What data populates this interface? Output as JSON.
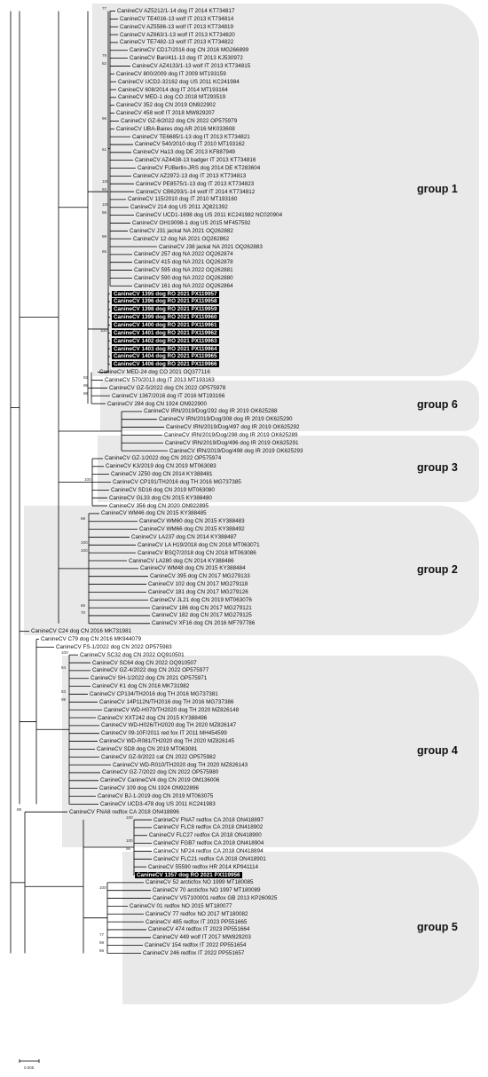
{
  "groups": [
    {
      "label": "group 1",
      "from": 0,
      "to": 46
    },
    {
      "label": "group 6",
      "from": 48,
      "to": 53
    },
    {
      "label": "group 3",
      "from": 55,
      "to": 62
    },
    {
      "label": "group 2",
      "from": 64,
      "to": 79
    },
    {
      "label": "group 4",
      "from": 83,
      "to": 106
    },
    {
      "label": "group 5",
      "from": 108,
      "to": 126
    }
  ],
  "scale": {
    "label": "0.005"
  },
  "leaves": [
    {
      "label": "CanineCV AZ5212/1-14 dog IT 2014 KT734817",
      "bs": "77"
    },
    {
      "label": "CanineCV TE4016-13 wolf IT 2013 KT734814",
      "bs": ""
    },
    {
      "label": "CanineCV AZ5586-13 wolf IT 2013 KT734819",
      "bs": ""
    },
    {
      "label": "CanineCV AZ663/1-13 wolf IT 2013 KT734820",
      "bs": ""
    },
    {
      "label": "CanineCV TE7482-13 wolf IT 2013 KT734822",
      "bs": ""
    },
    {
      "label": "CanineCV CD17/2016 dog CN 2016 MG266899",
      "bs": ""
    },
    {
      "label": "CanineCV Bari/411-13 dog IT 2013 KJ530972",
      "bs": "79"
    },
    {
      "label": "CanineCV AZ4133/1-13 wolf IT 2013 KT734815",
      "bs": "82"
    },
    {
      "label": "CanineCV 800/2009 dog IT 2009 MT193159",
      "bs": ""
    },
    {
      "label": "CanineCV UCD2-32162 dog US 2011 KC241984",
      "bs": ""
    },
    {
      "label": "CanineCV 608/2014 dog IT 2014 MT193164",
      "bs": ""
    },
    {
      "label": "CanineCV MED-1 dog CO 2018 MT293519",
      "bs": ""
    },
    {
      "label": "CanineCV 352 dog CN 2019 ON922902",
      "bs": ""
    },
    {
      "label": "CanineCV 458 wolf IT 2018 MW829207",
      "bs": ""
    },
    {
      "label": "CanineCV GZ-6/2022 dog CN 2022 OP575979",
      "bs": "96"
    },
    {
      "label": "CanineCV UBA-Baires dog AR 2016 MK033608",
      "bs": ""
    },
    {
      "label": "CanineCV TE6685/1-13 dog IT 2013 KT734821",
      "bs": ""
    },
    {
      "label": "CanineCV 540/2010 dog IT 2010 MT193162",
      "bs": ""
    },
    {
      "label": "CanineCV Ha13 dog DE 2013 KF887949",
      "bs": "61"
    },
    {
      "label": "CanineCV AZ4438-13 badger IT 2013 KT734816",
      "bs": ""
    },
    {
      "label": "CanineCV FUBerlin-JRS dog 2014 DE KT283604",
      "bs": ""
    },
    {
      "label": "CanineCV AZ2972-13 dog IT 2013 KT734813",
      "bs": ""
    },
    {
      "label": "CanineCV PE8575/1-13 dog IT 2013 KT734823",
      "bs": "100"
    },
    {
      "label": "CanineCV CB6293/1-14 wolf IT 2014 KT734812",
      "bs": "93"
    },
    {
      "label": "CanineCV 115/2010 dog IT 2010 MT193160",
      "bs": ""
    },
    {
      "label": "CanineCV 214 dog US 2011 JQ821392",
      "bs": "100"
    },
    {
      "label": "CanineCV UCD1-1698 dog US 2011 KC241982 NC020904",
      "bs": "96"
    },
    {
      "label": "CanineCV OH19098-1 dog US 2015 MF457592",
      "bs": ""
    },
    {
      "label": "CanineCV J31 jackal NA 2021 OQ262882",
      "bs": ""
    },
    {
      "label": "CanineCV 12 dog NA 2021 OQ262862",
      "bs": "99"
    },
    {
      "label": "CanineCV J38 jackal NA 2021 OQ262883",
      "bs": ""
    },
    {
      "label": "CanineCV 257 dog NA 2022 OQ262874",
      "bs": "86"
    },
    {
      "label": "CanineCV 415 dog NA 2021 OQ262878",
      "bs": ""
    },
    {
      "label": "CanineCV 595 dog NA 2022 OQ262881",
      "bs": ""
    },
    {
      "label": "CanineCV 590 dog NA 2022 OQ262880",
      "bs": ""
    },
    {
      "label": "CanineCV 161 dog NA 2022 OQ262864",
      "bs": ""
    },
    {
      "label": "CanineCV 1395 dog RO 2021 PX119957",
      "bs": "",
      "hl": true
    },
    {
      "label": "CanineCV 1396 dog RO 2021 PX119958",
      "bs": "",
      "hl": true
    },
    {
      "label": "CanineCV 1398 dog RO 2021 PX119959",
      "bs": "",
      "hl": true
    },
    {
      "label": "CanineCV 1399 dog RO 2021 PX119960",
      "bs": "",
      "hl": true
    },
    {
      "label": "CanineCV 1400 dog RO 2021 PX119961",
      "bs": "",
      "hl": true
    },
    {
      "label": "CanineCV 1401 dog RO 2021 PX119962",
      "bs": "100",
      "hl": true
    },
    {
      "label": "CanineCV 1402 dog RO 2021 PX119963",
      "bs": "",
      "hl": true
    },
    {
      "label": "CanineCV 1403 dog RO 2021 PX119964",
      "bs": "",
      "hl": true
    },
    {
      "label": "CanineCV 1404 dog RO 2021 PX119965",
      "bs": "",
      "hl": true
    },
    {
      "label": "CanineCV 1406 dog RO 2021 PX119966",
      "bs": "",
      "hl": true
    },
    {
      "label": "CanineCV MED-24 dog CO 2021 OQ377116",
      "bs": ""
    },
    {
      "label": "CanineCV 570/2013 dog IT 2013 MT193163",
      "bs": "92"
    },
    {
      "label": "CanineCV GZ-5/2022 dog CN 2022 OP575978",
      "bs": "99"
    },
    {
      "label": "CanineCV 1367/2016 dog IT 2016 MT193166",
      "bs": "96"
    },
    {
      "label": "CanineCV 284 dog CN 1924 ON922900",
      "bs": ""
    },
    {
      "label": "CanineCV IRN/2019/Dog/292 dog IR 2019 OK625288",
      "bs": ""
    },
    {
      "label": "CanineCV IRN/2019/Dog/308 dog IR 2019 OK625290",
      "bs": ""
    },
    {
      "label": "CanineCV IRN/2019/Dog/497 dog IR 2019 OK625292",
      "bs": ""
    },
    {
      "label": "CanineCV IRN/2019/Dog/298 dog IR 2019 OK625289",
      "bs": ""
    },
    {
      "label": "CanineCV IRN/2019/Dog/496 dog IR 2019 OK625291",
      "bs": ""
    },
    {
      "label": "CanineCV IRN/2019/Dog/498 dog IR 2019 OK625293",
      "bs": ""
    },
    {
      "label": "CanineCV GZ-1/2022 dog CN 2022 OP575974",
      "bs": ""
    },
    {
      "label": "CanineCV K3/2019 dog CN 2019 MT063083",
      "bs": ""
    },
    {
      "label": "CanineCV JZ50 dog CN 2014 KY388481",
      "bs": ""
    },
    {
      "label": "CanineCV CP191/TH2016 dog TH 2016 MG737385",
      "bs": "100"
    },
    {
      "label": "CanineCV SD16 dog CN 2019 MT063080",
      "bs": ""
    },
    {
      "label": "CanineCV GL33 dog CN 2015 KY388480",
      "bs": ""
    },
    {
      "label": "CanineCV 356 dog CN 2020 ON922895",
      "bs": ""
    },
    {
      "label": "CanineCV WM46 dog CN 2015 KY388485",
      "bs": ""
    },
    {
      "label": "CanineCV WM60 dog CN 2015 KY388483",
      "bs": "99"
    },
    {
      "label": "CanineCV WM66 dog CN 2015 KY388492",
      "bs": ""
    },
    {
      "label": "CanineCV LA237 dog CN 2014 KY388487",
      "bs": ""
    },
    {
      "label": "CanineCV LA H19/2018 dog CN 2018 MT063071",
      "bs": "100"
    },
    {
      "label": "CanineCV BSQ7/2018 dog CN 2018 MT063086",
      "bs": "100"
    },
    {
      "label": "CanineCV LA280 dog CN 2014 KY388486",
      "bs": ""
    },
    {
      "label": "CanineCV WM48 dog CN 2015 KY388484",
      "bs": ""
    },
    {
      "label": "CanineCV 395 dog CN 2017 MG279133",
      "bs": ""
    },
    {
      "label": "CanineCV 102 dog CN 2017 MG279118",
      "bs": ""
    },
    {
      "label": "CanineCV 181 dog CN 2017 MG279126",
      "bs": ""
    },
    {
      "label": "CanineCV JL21 dog CN 2019 MT063076",
      "bs": ""
    },
    {
      "label": "CanineCV 186 dog CN 2017 MG279121",
      "bs": "66"
    },
    {
      "label": "CanineCV 182 dog CN 2017 MG279125",
      "bs": "70"
    },
    {
      "label": "CanineCV XF16 dog CN 2016 MF797786",
      "bs": ""
    },
    {
      "label": "CanineCV C24 dog CN 2016 MK731981",
      "bs": ""
    },
    {
      "label": "CanineCV C79 dog CN 2016 MK944079",
      "bs": ""
    },
    {
      "label": "CanineCV FS-1/2022 dog CN 2022 OP575983",
      "bs": ""
    },
    {
      "label": "CanineCV SC32 dog CN 2022 OQ910501",
      "bs": "100"
    },
    {
      "label": "CanineCV SC64 dog CN 2022 OQ910507",
      "bs": ""
    },
    {
      "label": "CanineCV GZ-4/2022 dog CN 2022 OP575977",
      "bs": "94"
    },
    {
      "label": "CanineCV SH-1/2022 dog CN 2021 OP575971",
      "bs": ""
    },
    {
      "label": "CanineCV K1 dog CN 2016 MK731982",
      "bs": ""
    },
    {
      "label": "CanineCV CP134/TH2016 dog TH 2016 MG737381",
      "bs": "83"
    },
    {
      "label": "CanineCV 14P112N/TH2016 dog TH 2016 MG737386",
      "bs": "99"
    },
    {
      "label": "CanineCV WD-H070/TH2020 dog TH 2020 MZ826148",
      "bs": ""
    },
    {
      "label": "CanineCV XXT242 dog CN 2015 KY388496",
      "bs": ""
    },
    {
      "label": "CanineCV WD-H026/TH2020 dog TH 2020 MZ826147",
      "bs": ""
    },
    {
      "label": "CanineCV 09-10F/2011 red fox IT 2011 MH454599",
      "bs": ""
    },
    {
      "label": "CanineCV WD-R081/TH2020 dog TH 2020 MZ826145",
      "bs": ""
    },
    {
      "label": "CanineCV SD8 dog CN 2019 MT063081",
      "bs": ""
    },
    {
      "label": "CanineCV GZ-9/2022 cat CN 2022 OP575982",
      "bs": ""
    },
    {
      "label": "CanineCV WD-R010/TH2020 dog TH 2020 MZ826143",
      "bs": ""
    },
    {
      "label": "CanineCV GZ-7/2022 dog CN 2022 OP575980",
      "bs": ""
    },
    {
      "label": "CanineCV CanineCV4 dog CN 2019 OM136006",
      "bs": ""
    },
    {
      "label": "CanineCV 109 dog CN 1924 ON922896",
      "bs": ""
    },
    {
      "label": "CanineCV BJ-1-2019 dog CN 2019 MT063075",
      "bs": ""
    },
    {
      "label": "CanineCV UCD3-478 dog US 2011 KC241983",
      "bs": ""
    },
    {
      "label": "CanineCV FNA8 redfox CA 2018 ON418896",
      "bs": "89"
    },
    {
      "label": "CanineCV FNA7 redfox CA 2018 ON418897",
      "bs": "100"
    },
    {
      "label": "CanineCV FLC8 redfox CA 2018 ON418902",
      "bs": ""
    },
    {
      "label": "CanineCV FLC27 redfox CA 2018 ON418900",
      "bs": ""
    },
    {
      "label": "CanineCV FGB7 redfox CA 2018 ON418904",
      "bs": "100"
    },
    {
      "label": "CanineCV NP24 redfox CA 2018 ON418894",
      "bs": "95"
    },
    {
      "label": "CanineCV FLC21 redfox CA 2018 ON418901",
      "bs": ""
    },
    {
      "label": "CanineCV 55590 redfox HR 2014 KP941114",
      "bs": ""
    },
    {
      "label": "CanineCV 1357 dog RO 2021 PX119956",
      "bs": "",
      "hl": true
    },
    {
      "label": "CanineCV 52 arcticfox NO 1999 MT180085",
      "bs": ""
    },
    {
      "label": "CanineCV 70 arcticfox NO 1997 MT180089",
      "bs": "100"
    },
    {
      "label": "CanineCV VS7100001 redfox GB 2013 KP260925",
      "bs": ""
    },
    {
      "label": "CanineCV 01 redfox NO 2015 MT180077",
      "bs": ""
    },
    {
      "label": "CanineCV 77 redfox NO 2017 MT180082",
      "bs": ""
    },
    {
      "label": "CanineCV 485 redfox IT 2023 PP551665",
      "bs": ""
    },
    {
      "label": "CanineCV 474 redfox IT 2023 PP551664",
      "bs": ""
    },
    {
      "label": "CanineCV 449 wolf IT 2017 MW829203",
      "bs": "77"
    },
    {
      "label": "CanineCV 154 redfox IT 2022 PP551654",
      "bs": "99"
    },
    {
      "label": "CanineCV 246 redfox IT 2022 PP551657",
      "bs": "86"
    }
  ]
}
